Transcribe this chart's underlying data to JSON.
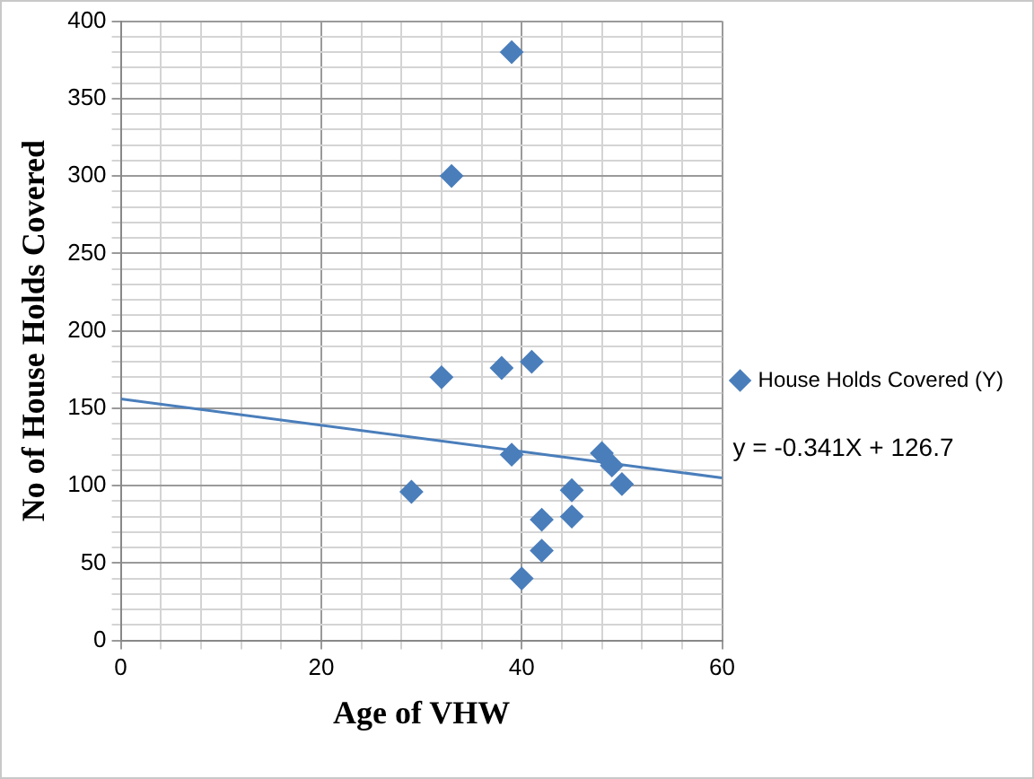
{
  "chart_data": {
    "type": "scatter",
    "xlabel": "Age of VHW",
    "ylabel": "No of House Holds Covered",
    "xlim": [
      0,
      60
    ],
    "ylim": [
      0,
      400
    ],
    "xticks": [
      0,
      {
        "value": 4,
        "label": null
      },
      {
        "value": 8,
        "label": null
      },
      {
        "value": 12,
        "label": null
      },
      {
        "value": 16,
        "label": null
      },
      20,
      {
        "value": 24,
        "label": null
      },
      {
        "value": 28,
        "label": null
      },
      {
        "value": 32,
        "label": null
      },
      {
        "value": 36,
        "label": null
      },
      40,
      {
        "value": 44,
        "label": null
      },
      {
        "value": 48,
        "label": null
      },
      {
        "value": 52,
        "label": null
      },
      {
        "value": 56,
        "label": null
      },
      60
    ],
    "yticks": [
      0,
      {
        "value": 10,
        "label": null
      },
      {
        "value": 20,
        "label": null
      },
      {
        "value": 30,
        "label": null
      },
      {
        "value": 40,
        "label": null
      },
      50,
      {
        "value": 60,
        "label": null
      },
      {
        "value": 70,
        "label": null
      },
      {
        "value": 80,
        "label": null
      },
      {
        "value": 90,
        "label": null
      },
      100,
      {
        "value": 110,
        "label": null
      },
      {
        "value": 120,
        "label": null
      },
      {
        "value": 130,
        "label": null
      },
      {
        "value": 140,
        "label": null
      },
      150,
      {
        "value": 160,
        "label": null
      },
      {
        "value": 170,
        "label": null
      },
      {
        "value": 180,
        "label": null
      },
      {
        "value": 190,
        "label": null
      },
      200,
      {
        "value": 210,
        "label": null
      },
      {
        "value": 220,
        "label": null
      },
      {
        "value": 230,
        "label": null
      },
      {
        "value": 240,
        "label": null
      },
      250,
      {
        "value": 260,
        "label": null
      },
      {
        "value": 270,
        "label": null
      },
      {
        "value": 280,
        "label": null
      },
      {
        "value": 290,
        "label": null
      },
      300,
      {
        "value": 310,
        "label": null
      },
      {
        "value": 320,
        "label": null
      },
      {
        "value": 330,
        "label": null
      },
      {
        "value": 340,
        "label": null
      },
      350,
      {
        "value": 360,
        "label": null
      },
      {
        "value": 370,
        "label": null
      },
      {
        "value": 380,
        "label": null
      },
      {
        "value": 390,
        "label": null
      },
      400
    ],
    "grid": true,
    "legend": "right",
    "marker": "diamond",
    "series": [
      {
        "name": "House Holds Covered (Y)",
        "color": "#4a7ebb",
        "x": [
          39,
          33,
          32,
          38,
          41,
          39,
          29,
          48,
          49,
          50,
          45,
          45,
          42,
          42,
          40
        ],
        "values": [
          380,
          300,
          170,
          176,
          180,
          120,
          96,
          121,
          113,
          101,
          97,
          80,
          78,
          58,
          40
        ]
      },
      {
        "type": "line",
        "color": "#4a7ebb",
        "x": [
          0,
          60
        ],
        "values": [
          156,
          105
        ],
        "marker": "none",
        "line_style": "solid"
      }
    ],
    "annotations": [
      "y = -0.341X + 126.7"
    ]
  }
}
